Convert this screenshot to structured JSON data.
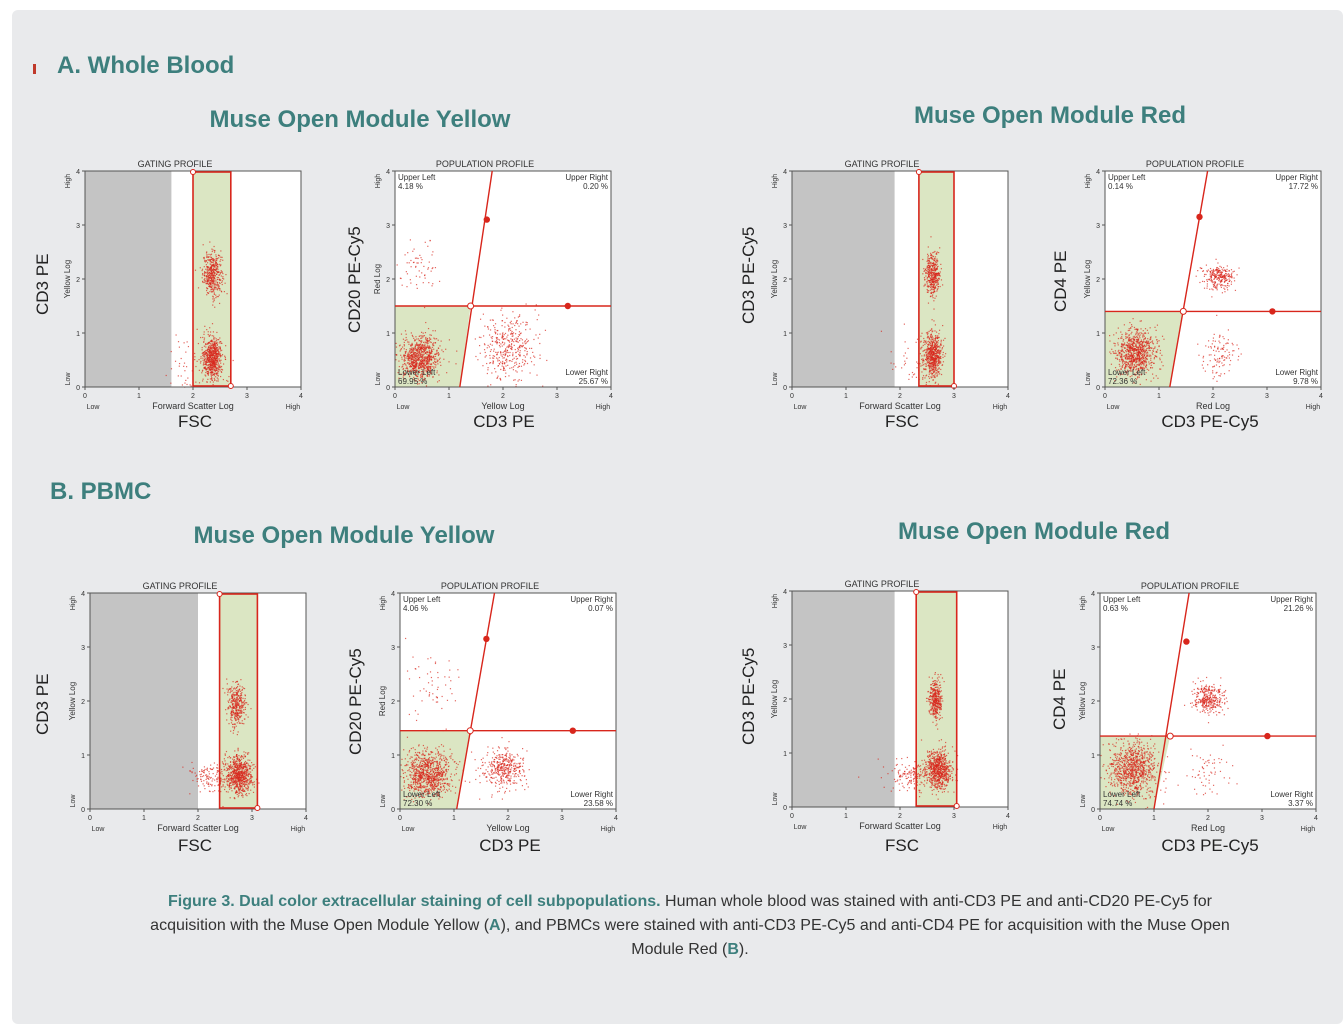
{
  "sections": [
    {
      "label": "A. Whole Blood"
    },
    {
      "label": "B. PBMC"
    }
  ],
  "modules": {
    "a_yellow": "Muse Open Module Yellow",
    "a_red": "Muse Open Module Red",
    "b_yellow": "Muse Open Module Yellow",
    "b_red": "Muse Open Module Red"
  },
  "axis_titles": {
    "a_y_gate_y": "CD3 PE",
    "a_y_gate_x": "FSC",
    "a_y_pop_y": "CD20 PE-Cy5",
    "a_y_pop_x": "CD3 PE",
    "a_r_gate_y": "CD3 PE-Cy5",
    "a_r_gate_x": "FSC",
    "a_r_pop_y": "CD4 PE",
    "a_r_pop_x": "CD3 PE-Cy5",
    "b_y_gate_y": "CD3 PE",
    "b_y_gate_x": "FSC",
    "b_y_pop_y": "CD20 PE-Cy5",
    "b_y_pop_x": "CD3 PE",
    "b_r_gate_y": "CD3 PE-Cy5",
    "b_r_gate_x": "FSC",
    "b_r_pop_y": "CD4 PE",
    "b_r_pop_x": "CD3 PE-Cy5"
  },
  "caption": {
    "lead": "Figure 3. Dual color extracellular staining of cell subpopulations.",
    "text1": " Human whole blood was stained with anti-CD3 PE and anti-CD20 PE-Cy5 for acquisition with the Muse Open Module Yellow (",
    "a": "A",
    "text2": "), and PBMCs were stained with anti-CD3 PE-Cy5 and anti-CD4 PE for acquisition with the Muse Open Module Red (",
    "b": "B",
    "text3": ")."
  },
  "chart_data": [
    {
      "id": "a_y_gate",
      "type": "scatter",
      "kind": "gating",
      "title": "GATING PROFILE",
      "xlabel": "Forward Scatter Log",
      "ylabel": "Yellow Log",
      "xlim": [
        0,
        4
      ],
      "ylim": [
        0,
        4
      ],
      "x_ticks": [
        "0",
        "1",
        "2",
        "3",
        "4"
      ],
      "y_ticks": [
        "0",
        "1",
        "2",
        "3",
        "4"
      ],
      "x_low": "Low",
      "x_high": "High",
      "y_low": "Low",
      "y_high": "High",
      "exclusion_max": 1.6,
      "gate_x": [
        2.0,
        2.7
      ],
      "clusters": [
        {
          "x": 2.35,
          "y": 2.1,
          "sx": 0.09,
          "sy": 0.2,
          "n": 420
        },
        {
          "x": 2.35,
          "y": 0.55,
          "sx": 0.09,
          "sy": 0.2,
          "n": 620
        },
        {
          "x": 2.0,
          "y": 0.4,
          "sx": 0.3,
          "sy": 0.3,
          "n": 70
        }
      ]
    },
    {
      "id": "a_y_pop",
      "type": "scatter",
      "kind": "population",
      "title": "POPULATION PROFILE",
      "xlabel": "Yellow Log",
      "ylabel": "Red Log",
      "xlim": [
        0,
        4
      ],
      "ylim": [
        0,
        4
      ],
      "x_ticks": [
        "0",
        "1",
        "2",
        "3",
        "4"
      ],
      "y_ticks": [
        "0",
        "1",
        "2",
        "3",
        "4"
      ],
      "x_low": "Low",
      "x_high": "High",
      "y_low": "Low",
      "y_high": "High",
      "cross": [
        1.4,
        1.5
      ],
      "vert_top": 1.8,
      "vert_bottom": 1.2,
      "vert_handle": [
        1.7,
        3.1
      ],
      "horiz_handle": [
        3.2,
        1.5
      ],
      "quadrants": {
        "ul_label": "Upper Left",
        "ul_value": "4.18 %",
        "ur_label": "Upper Right",
        "ur_value": "0.20 %",
        "ll_label": "Lower Left",
        "ll_value": "69.95 %",
        "lr_label": "Lower Right",
        "lr_value": "25.67 %"
      },
      "clusters": [
        {
          "x": 0.45,
          "y": 0.55,
          "sx": 0.18,
          "sy": 0.2,
          "n": 800
        },
        {
          "x": 2.1,
          "y": 0.75,
          "sx": 0.25,
          "sy": 0.3,
          "n": 380
        },
        {
          "x": 0.45,
          "y": 2.2,
          "sx": 0.2,
          "sy": 0.3,
          "n": 60
        }
      ]
    },
    {
      "id": "a_r_gate",
      "type": "scatter",
      "kind": "gating",
      "title": "GATING PROFILE",
      "xlabel": "Forward Scatter Log",
      "ylabel": "Yellow Log",
      "xlim": [
        0,
        4
      ],
      "ylim": [
        0,
        4
      ],
      "x_ticks": [
        "0",
        "1",
        "2",
        "3",
        "4"
      ],
      "y_ticks": [
        "0",
        "1",
        "2",
        "3",
        "4"
      ],
      "x_low": "Low",
      "x_high": "High",
      "y_low": "Low",
      "y_high": "High",
      "exclusion_max": 1.9,
      "gate_x": [
        2.35,
        3.0
      ],
      "clusters": [
        {
          "x": 2.6,
          "y": 2.1,
          "sx": 0.07,
          "sy": 0.2,
          "n": 380
        },
        {
          "x": 2.6,
          "y": 0.6,
          "sx": 0.08,
          "sy": 0.2,
          "n": 560
        },
        {
          "x": 2.3,
          "y": 0.4,
          "sx": 0.25,
          "sy": 0.3,
          "n": 70
        }
      ]
    },
    {
      "id": "a_r_pop",
      "type": "scatter",
      "kind": "population",
      "title": "POPULATION PROFILE",
      "xlabel": "Red Log",
      "ylabel": "Yellow Log",
      "xlim": [
        0,
        4
      ],
      "ylim": [
        0,
        4
      ],
      "x_ticks": [
        "0",
        "1",
        "2",
        "3",
        "4"
      ],
      "y_ticks": [
        "0",
        "1",
        "2",
        "3",
        "4"
      ],
      "x_low": "Low",
      "x_high": "High",
      "y_low": "Low",
      "y_high": "High",
      "cross": [
        1.45,
        1.4
      ],
      "vert_top": 1.9,
      "vert_bottom": 1.2,
      "vert_handle": [
        1.75,
        3.15
      ],
      "horiz_handle": [
        3.1,
        1.4
      ],
      "quadrants": {
        "ul_label": "Upper Left",
        "ul_value": "0.14 %",
        "ur_label": "Upper Right",
        "ur_value": "17.72 %",
        "ll_label": "Lower Left",
        "ll_value": "72.36 %",
        "lr_label": "Lower Right",
        "lr_value": "9.78 %"
      },
      "clusters": [
        {
          "x": 0.55,
          "y": 0.65,
          "sx": 0.2,
          "sy": 0.22,
          "n": 800
        },
        {
          "x": 2.1,
          "y": 2.05,
          "sx": 0.15,
          "sy": 0.12,
          "n": 260
        },
        {
          "x": 2.1,
          "y": 0.6,
          "sx": 0.18,
          "sy": 0.2,
          "n": 110
        }
      ]
    },
    {
      "id": "b_y_gate",
      "type": "scatter",
      "kind": "gating",
      "title": "GATING PROFILE",
      "xlabel": "Forward Scatter Log",
      "ylabel": "Yellow Log",
      "xlim": [
        0,
        4
      ],
      "ylim": [
        0,
        4
      ],
      "x_ticks": [
        "0",
        "1",
        "2",
        "3",
        "4"
      ],
      "y_ticks": [
        "0",
        "1",
        "2",
        "3",
        "4"
      ],
      "x_low": "Low",
      "x_high": "High",
      "y_low": "Low",
      "y_high": "High",
      "exclusion_max": 2.0,
      "gate_x": [
        2.4,
        3.1
      ],
      "clusters": [
        {
          "x": 2.7,
          "y": 1.95,
          "sx": 0.08,
          "sy": 0.2,
          "n": 340
        },
        {
          "x": 2.75,
          "y": 0.65,
          "sx": 0.12,
          "sy": 0.18,
          "n": 660
        },
        {
          "x": 2.3,
          "y": 0.6,
          "sx": 0.25,
          "sy": 0.15,
          "n": 160
        }
      ]
    },
    {
      "id": "b_y_pop",
      "type": "scatter",
      "kind": "population",
      "title": "POPULATION PROFILE",
      "xlabel": "Yellow Log",
      "ylabel": "Red Log",
      "xlim": [
        0,
        4
      ],
      "ylim": [
        0,
        4
      ],
      "x_ticks": [
        "0",
        "1",
        "2",
        "3",
        "4"
      ],
      "y_ticks": [
        "0",
        "1",
        "2",
        "3",
        "4"
      ],
      "x_low": "Low",
      "x_high": "High",
      "y_low": "Low",
      "y_high": "High",
      "cross": [
        1.3,
        1.45
      ],
      "vert_top": 1.75,
      "vert_bottom": 1.05,
      "vert_handle": [
        1.6,
        3.15
      ],
      "horiz_handle": [
        3.2,
        1.45
      ],
      "quadrants": {
        "ul_label": "Upper Left",
        "ul_value": "4.06 %",
        "ur_label": "Upper Right",
        "ur_value": "0.07 %",
        "ll_label": "Lower Left",
        "ll_value": "72.30 %",
        "lr_label": "Lower Right",
        "lr_value": "23.58 %"
      },
      "clusters": [
        {
          "x": 0.5,
          "y": 0.65,
          "sx": 0.22,
          "sy": 0.22,
          "n": 850
        },
        {
          "x": 1.9,
          "y": 0.75,
          "sx": 0.2,
          "sy": 0.18,
          "n": 380
        },
        {
          "x": 0.6,
          "y": 2.2,
          "sx": 0.25,
          "sy": 0.35,
          "n": 60
        }
      ]
    },
    {
      "id": "b_r_gate",
      "type": "scatter",
      "kind": "gating",
      "title": "GATING PROFILE",
      "xlabel": "Forward Scatter Log",
      "ylabel": "Yellow Log",
      "xlim": [
        0,
        4
      ],
      "ylim": [
        0,
        4
      ],
      "x_ticks": [
        "0",
        "1",
        "2",
        "3",
        "4"
      ],
      "y_ticks": [
        "0",
        "1",
        "2",
        "3",
        "4"
      ],
      "x_low": "Low",
      "x_high": "High",
      "y_low": "Low",
      "y_high": "High",
      "exclusion_max": 1.9,
      "gate_x": [
        2.3,
        3.05
      ],
      "clusters": [
        {
          "x": 2.65,
          "y": 2.0,
          "sx": 0.06,
          "sy": 0.18,
          "n": 360
        },
        {
          "x": 2.7,
          "y": 0.7,
          "sx": 0.12,
          "sy": 0.18,
          "n": 680
        },
        {
          "x": 2.2,
          "y": 0.6,
          "sx": 0.25,
          "sy": 0.15,
          "n": 150
        }
      ]
    },
    {
      "id": "b_r_pop",
      "type": "scatter",
      "kind": "population",
      "title": "POPULATION PROFILE",
      "xlabel": "Red Log",
      "ylabel": "Yellow Log",
      "xlim": [
        0,
        4
      ],
      "ylim": [
        0,
        4
      ],
      "x_ticks": [
        "0",
        "1",
        "2",
        "3",
        "4"
      ],
      "y_ticks": [
        "0",
        "1",
        "2",
        "3",
        "4"
      ],
      "x_low": "Low",
      "x_high": "High",
      "y_low": "Low",
      "y_high": "High",
      "cross": [
        1.3,
        1.35
      ],
      "vert_top": 1.65,
      "vert_bottom": 1.0,
      "vert_handle": [
        1.6,
        3.1
      ],
      "horiz_handle": [
        3.1,
        1.35
      ],
      "quadrants": {
        "ul_label": "Upper Left",
        "ul_value": "0.63 %",
        "ur_label": "Upper Right",
        "ur_value": "21.26 %",
        "ll_label": "Lower Left",
        "ll_value": "74.74 %",
        "lr_label": "Lower Right",
        "lr_value": "3.37 %"
      },
      "clusters": [
        {
          "x": 0.6,
          "y": 0.75,
          "sx": 0.22,
          "sy": 0.25,
          "n": 850
        },
        {
          "x": 2.0,
          "y": 2.05,
          "sx": 0.14,
          "sy": 0.13,
          "n": 320
        },
        {
          "x": 2.0,
          "y": 0.7,
          "sx": 0.2,
          "sy": 0.2,
          "n": 60
        }
      ]
    }
  ]
}
